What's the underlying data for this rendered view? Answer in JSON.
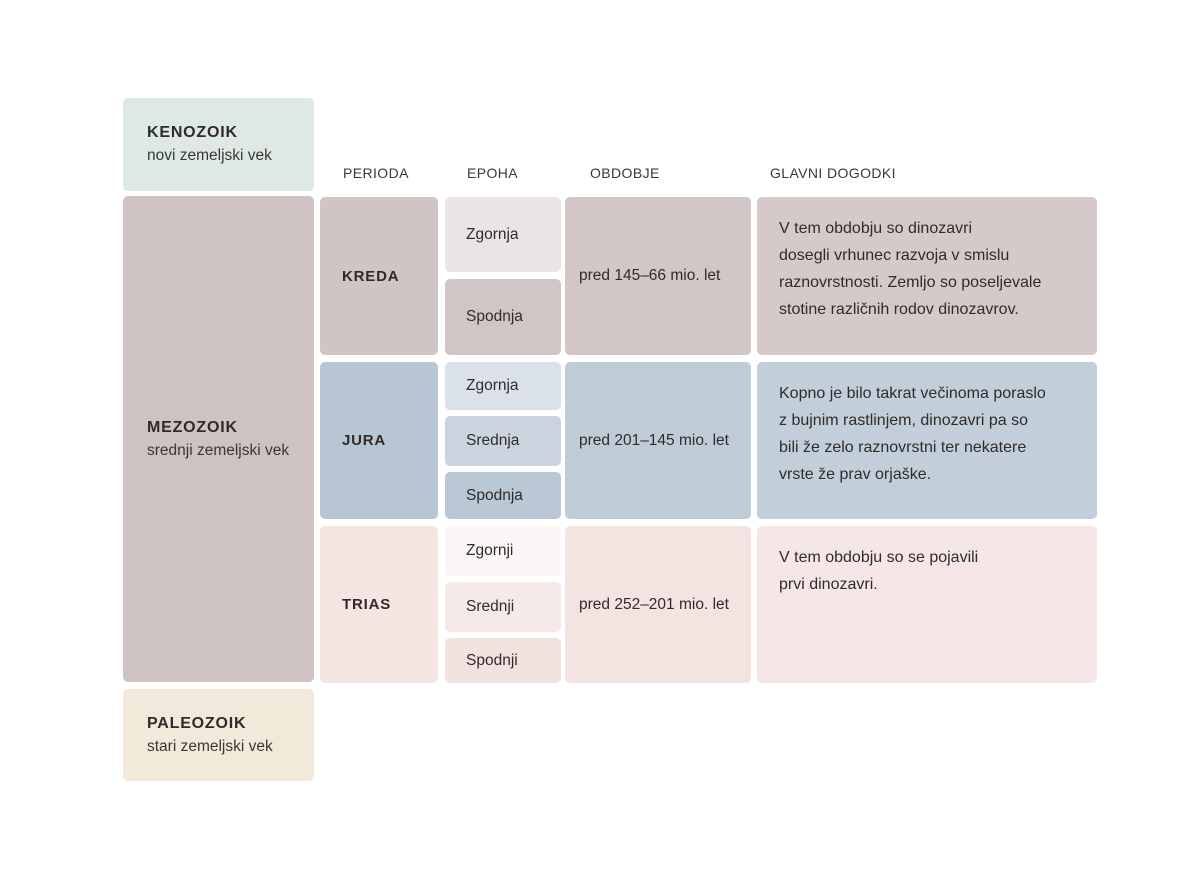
{
  "eras": [
    {
      "name": "KENOZOIK",
      "subtitle": "novi zemeljski vek",
      "color": "#dee9e3"
    },
    {
      "name": "MEZOZOIK",
      "subtitle": "srednji zemeljski vek",
      "color": "#cec2c2"
    },
    {
      "name": "PALEOZOIK",
      "subtitle": "stari zemeljski vek",
      "color": "#f1e9da"
    }
  ],
  "column_headers": {
    "perioda": "PERIODA",
    "epoha": "EPOHA",
    "obdobje": "OBDOBJE",
    "glavni_dogodki": "GLAVNI DOGODKI"
  },
  "periods": [
    {
      "name": "KREDA",
      "color": "#d1c4c5",
      "epochs": [
        {
          "label": "Zgornja",
          "color": "#eae4e5"
        },
        {
          "label": "Spodnja",
          "color": "#d2c5c6"
        }
      ],
      "obdobje": {
        "label": "pred 145–66 mio. let",
        "color": "#d3c6c7"
      },
      "events": {
        "color": "#d5c9c9",
        "lines": [
          "V tem obdobju so dinozavri",
          "dosegli vrhunec razvoja v smislu",
          "raznovrstnosti. Zemljo so poseljevale",
          "stotine različnih rodov dinozavrov."
        ]
      }
    },
    {
      "name": "JURA",
      "color": "#b8c5d2",
      "epochs": [
        {
          "label": "Zgornja",
          "color": "#dbe1e9"
        },
        {
          "label": "Srednja",
          "color": "#cbd4de"
        },
        {
          "label": "Spodnja",
          "color": "#bac7d4"
        }
      ],
      "obdobje": {
        "label": "pred 201–145 mio. let",
        "color": "#bfccd8"
      },
      "events": {
        "color": "#c2ced9",
        "lines": [
          "Kopno je bilo takrat večinoma poraslo",
          "z bujnim rastlinjem, dinozavri pa so",
          "bili že zelo raznovrstni ter nekatere",
          "vrste že prav orjaške."
        ]
      }
    },
    {
      "name": "TRIAS",
      "color": "#f4e4e2",
      "epochs": [
        {
          "label": "Zgornji",
          "color": "#fbf6f5"
        },
        {
          "label": "Srednji",
          "color": "#f6eae8"
        },
        {
          "label": "Spodnji",
          "color": "#f1e2e0"
        }
      ],
      "obdobje": {
        "label": "pred 252–201 mio. let",
        "color": "#f3e4e2"
      },
      "events": {
        "color": "#f5e7e5",
        "lines": [
          "V tem obdobju so se pojavili",
          "prvi dinozavri."
        ]
      }
    }
  ]
}
